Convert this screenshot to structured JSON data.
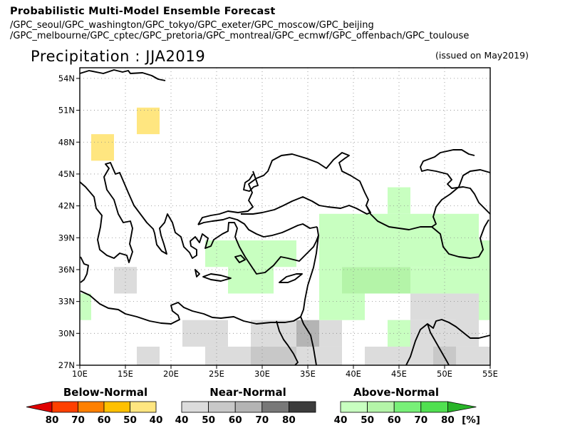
{
  "header": {
    "title": "Probabilistic Multi-Model Ensemble Forecast",
    "models_line1": "/GPC_seoul/GPC_washington/GPC_tokyo/GPC_exeter/GPC_moscow/GPC_beijing",
    "models_line2": "/GPC_melbourne/GPC_cptec/GPC_pretoria/GPC_montreal/GPC_ecmwf/GPC_offenbach/GPC_toulouse",
    "variable": "Precipitation : JJA2019",
    "issued": "(issued on May2019)"
  },
  "map": {
    "lat_ticks": [
      "27N",
      "30N",
      "33N",
      "36N",
      "39N",
      "42N",
      "45N",
      "48N",
      "51N",
      "54N"
    ],
    "lat_values": [
      27,
      30,
      33,
      36,
      39,
      42,
      45,
      48,
      51,
      54
    ],
    "lon_ticks": [
      "10E",
      "15E",
      "20E",
      "25E",
      "30E",
      "35E",
      "40E",
      "45E",
      "50E",
      "55E"
    ],
    "lon_values": [
      10,
      15,
      20,
      25,
      30,
      35,
      40,
      45,
      50,
      55
    ],
    "extent": {
      "lon_min": 10,
      "lon_max": 55,
      "lat_min": 27,
      "lat_max": 55
    },
    "grid": "dotted"
  },
  "cells": [
    {
      "lon": [
        11.25,
        13.75
      ],
      "lat": [
        46.25,
        48.75
      ],
      "cat": "below",
      "level": 40
    },
    {
      "lon": [
        16.25,
        18.75
      ],
      "lat": [
        48.75,
        51.25
      ],
      "cat": "below",
      "level": 40
    },
    {
      "lon": [
        13.75,
        16.25
      ],
      "lat": [
        33.75,
        36.25
      ],
      "cat": "near",
      "level": 40
    },
    {
      "lon": [
        16.25,
        18.75
      ],
      "lat": [
        26.25,
        28.75
      ],
      "cat": "near",
      "level": 40
    },
    {
      "lon": [
        21.25,
        26.25
      ],
      "lat": [
        28.75,
        31.25
      ],
      "cat": "near",
      "level": 40
    },
    {
      "lon": [
        23.75,
        28.75
      ],
      "lat": [
        26.25,
        28.75
      ],
      "cat": "near",
      "level": 40
    },
    {
      "lon": [
        28.75,
        33.75
      ],
      "lat": [
        28.75,
        31.25
      ],
      "cat": "near",
      "level": 40
    },
    {
      "lon": [
        28.75,
        33.75
      ],
      "lat": [
        26.25,
        28.75
      ],
      "cat": "near",
      "level": 50
    },
    {
      "lon": [
        33.75,
        36.25
      ],
      "lat": [
        26.25,
        28.75
      ],
      "cat": "near",
      "level": 40
    },
    {
      "lon": [
        33.75,
        36.25
      ],
      "lat": [
        28.75,
        31.25
      ],
      "cat": "near",
      "level": 60
    },
    {
      "lon": [
        36.25,
        38.75
      ],
      "lat": [
        28.75,
        31.25
      ],
      "cat": "near",
      "level": 40
    },
    {
      "lon": [
        36.25,
        38.75
      ],
      "lat": [
        26.25,
        28.75
      ],
      "cat": "near",
      "level": 40
    },
    {
      "lon": [
        41.25,
        43.75
      ],
      "lat": [
        26.25,
        28.75
      ],
      "cat": "near",
      "level": 40
    },
    {
      "lon": [
        43.75,
        51.25
      ],
      "lat": [
        26.25,
        31.25
      ],
      "cat": "near",
      "level": 40
    },
    {
      "lon": [
        46.25,
        51.25
      ],
      "lat": [
        31.25,
        33.75
      ],
      "cat": "near",
      "level": 40
    },
    {
      "lon": [
        48.75,
        51.25
      ],
      "lat": [
        26.25,
        28.75
      ],
      "cat": "near",
      "level": 50
    },
    {
      "lon": [
        51.25,
        53.75
      ],
      "lat": [
        28.75,
        33.75
      ],
      "cat": "near",
      "level": 40
    },
    {
      "lon": [
        51.25,
        55.0
      ],
      "lat": [
        26.25,
        28.75
      ],
      "cat": "near",
      "level": 40
    },
    {
      "lon": [
        10.0,
        11.25
      ],
      "lat": [
        31.25,
        33.75
      ],
      "cat": "above",
      "level": 40
    },
    {
      "lon": [
        23.75,
        26.25
      ],
      "lat": [
        36.25,
        38.75
      ],
      "cat": "above",
      "level": 40
    },
    {
      "lon": [
        26.25,
        33.75
      ],
      "lat": [
        36.25,
        38.75
      ],
      "cat": "above",
      "level": 40
    },
    {
      "lon": [
        26.25,
        31.25
      ],
      "lat": [
        33.75,
        36.25
      ],
      "cat": "above",
      "level": 40
    },
    {
      "lon": [
        36.25,
        43.75
      ],
      "lat": [
        38.75,
        41.25
      ],
      "cat": "above",
      "level": 40
    },
    {
      "lon": [
        36.25,
        38.75
      ],
      "lat": [
        31.25,
        38.75
      ],
      "cat": "above",
      "level": 40
    },
    {
      "lon": [
        38.75,
        41.25
      ],
      "lat": [
        31.25,
        33.75
      ],
      "cat": "above",
      "level": 40
    },
    {
      "lon": [
        38.75,
        53.75
      ],
      "lat": [
        36.25,
        38.75
      ],
      "cat": "above",
      "level": 40
    },
    {
      "lon": [
        43.75,
        46.25
      ],
      "lat": [
        41.25,
        43.75
      ],
      "cat": "above",
      "level": 40
    },
    {
      "lon": [
        43.75,
        53.75
      ],
      "lat": [
        38.75,
        41.25
      ],
      "cat": "above",
      "level": 40
    },
    {
      "lon": [
        38.75,
        46.25
      ],
      "lat": [
        33.75,
        36.25
      ],
      "cat": "above",
      "level": 50
    },
    {
      "lon": [
        46.25,
        53.75
      ],
      "lat": [
        33.75,
        36.25
      ],
      "cat": "above",
      "level": 40
    },
    {
      "lon": [
        53.75,
        55.0
      ],
      "lat": [
        31.25,
        38.75
      ],
      "cat": "above",
      "level": 40
    },
    {
      "lon": [
        43.75,
        46.25
      ],
      "lat": [
        28.75,
        31.25
      ],
      "cat": "above",
      "level": 40
    }
  ],
  "colors": {
    "below": {
      "40": "#ffe680",
      "50": "#ffc000",
      "60": "#ff8000",
      "70": "#ff4000",
      "80": "#e00000"
    },
    "near": {
      "40": "#dcdcdc",
      "50": "#c8c8c8",
      "60": "#b4b4b4",
      "70": "#787878",
      "80": "#3c3c3c"
    },
    "above": {
      "40": "#c8ffc0",
      "50": "#b4f4a8",
      "60": "#78f078",
      "70": "#50e050",
      "80": "#28b428"
    }
  },
  "legend": {
    "below": {
      "title": "Below-Normal",
      "labels": [
        "80",
        "70",
        "60",
        "50",
        "40"
      ]
    },
    "near": {
      "title": "Near-Normal",
      "labels": [
        "40",
        "50",
        "60",
        "70",
        "80"
      ]
    },
    "above": {
      "title": "Above-Normal",
      "labels": [
        "40",
        "50",
        "60",
        "70",
        "80"
      ],
      "unit": "[%]"
    }
  }
}
